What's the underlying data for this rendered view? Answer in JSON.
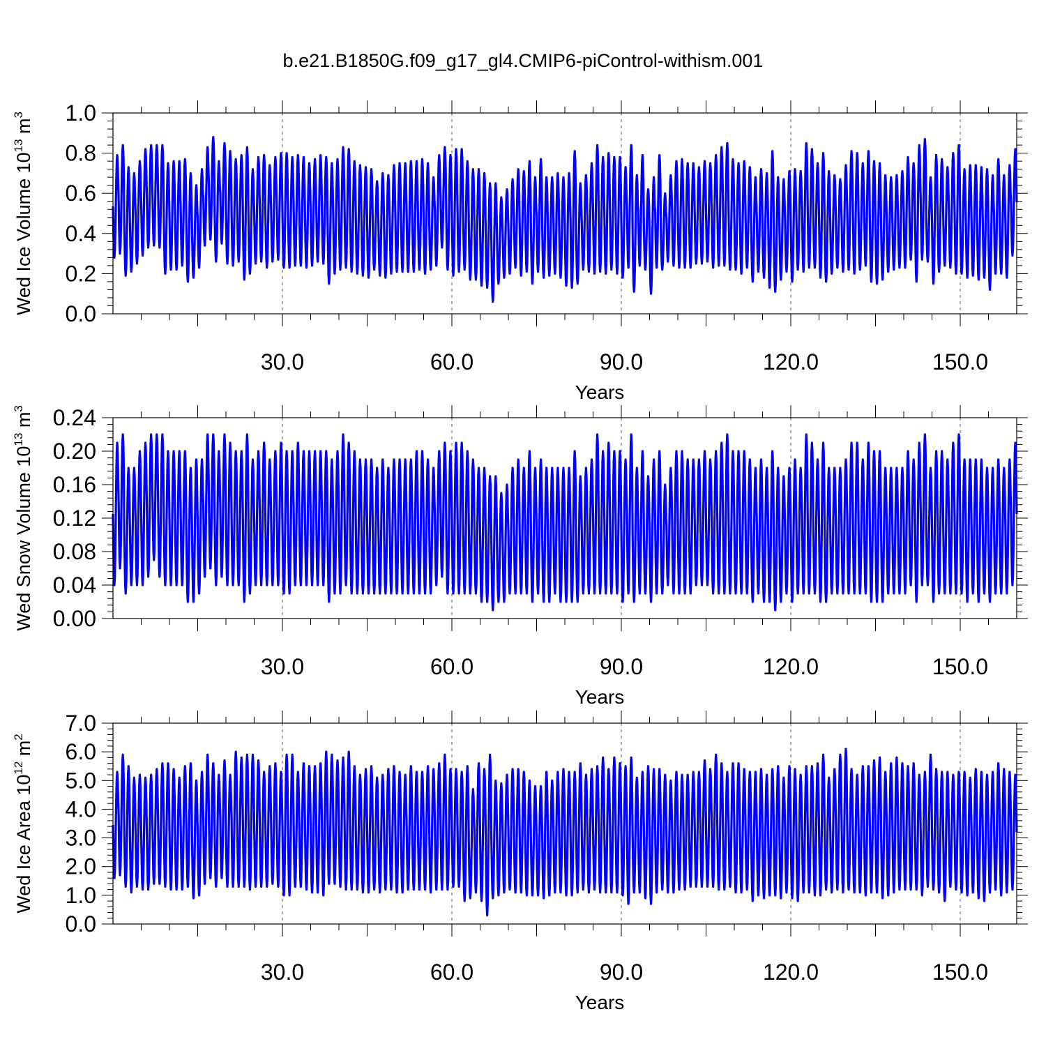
{
  "figure_title": "b.e21.B1850G.f09_g17_gl4.CMIP6-piControl-withism.001",
  "line_color": "#0000ff",
  "chart_data": [
    {
      "type": "line",
      "title": "",
      "xlabel": "Years",
      "ylabel": {
        "main": "Wed Ice Volume 10",
        "exponent": "13",
        "unit": " m",
        "unit_exponent": "3"
      },
      "xlim": [
        0,
        160
      ],
      "ylim": [
        0.0,
        1.0
      ],
      "xticks": [
        30,
        60,
        90,
        120,
        150
      ],
      "xtick_labels": [
        "30.0",
        "60.0",
        "90.0",
        "120.0",
        "150.0"
      ],
      "yticks": [
        0.0,
        0.2,
        0.4,
        0.6,
        0.8,
        1.0
      ],
      "ytick_labels": [
        "0.0",
        "0.2",
        "0.4",
        "0.6",
        "0.8",
        "1.0"
      ],
      "grid": "vertical dashed at labeled x ticks",
      "samples_per_year": 12,
      "annual_max": [
        0.79,
        0.84,
        0.73,
        0.7,
        0.76,
        0.82,
        0.84,
        0.84,
        0.84,
        0.75,
        0.76,
        0.76,
        0.77,
        0.7,
        0.64,
        0.72,
        0.83,
        0.88,
        0.76,
        0.85,
        0.81,
        0.77,
        0.79,
        0.83,
        0.72,
        0.78,
        0.79,
        0.74,
        0.78,
        0.8,
        0.8,
        0.78,
        0.79,
        0.78,
        0.75,
        0.77,
        0.79,
        0.78,
        0.75,
        0.77,
        0.83,
        0.82,
        0.76,
        0.74,
        0.73,
        0.72,
        0.66,
        0.7,
        0.69,
        0.74,
        0.75,
        0.75,
        0.76,
        0.76,
        0.77,
        0.75,
        0.68,
        0.79,
        0.83,
        0.79,
        0.82,
        0.82,
        0.76,
        0.72,
        0.72,
        0.7,
        0.65,
        0.65,
        0.58,
        0.62,
        0.67,
        0.72,
        0.71,
        0.76,
        0.68,
        0.77,
        0.68,
        0.68,
        0.7,
        0.68,
        0.7,
        0.81,
        0.65,
        0.69,
        0.75,
        0.84,
        0.78,
        0.8,
        0.78,
        0.78,
        0.73,
        0.84,
        0.69,
        0.79,
        0.62,
        0.68,
        0.79,
        0.6,
        0.69,
        0.76,
        0.77,
        0.75,
        0.75,
        0.73,
        0.76,
        0.75,
        0.79,
        0.83,
        0.85,
        0.77,
        0.75,
        0.76,
        0.73,
        0.68,
        0.72,
        0.7,
        0.81,
        0.68,
        0.67,
        0.71,
        0.72,
        0.71,
        0.85,
        0.82,
        0.75,
        0.8,
        0.71,
        0.69,
        0.67,
        0.74,
        0.81,
        0.8,
        0.75,
        0.81,
        0.76,
        0.75,
        0.69,
        0.68,
        0.69,
        0.71,
        0.78,
        0.75,
        0.84,
        0.87,
        0.68,
        0.79,
        0.77,
        0.73,
        0.8,
        0.84,
        0.72,
        0.74,
        0.74,
        0.73,
        0.72,
        0.69,
        0.77,
        0.69,
        0.74,
        0.82
      ],
      "annual_min": [
        0.28,
        0.3,
        0.19,
        0.21,
        0.25,
        0.29,
        0.33,
        0.34,
        0.33,
        0.2,
        0.22,
        0.22,
        0.24,
        0.16,
        0.18,
        0.23,
        0.34,
        0.37,
        0.26,
        0.35,
        0.25,
        0.24,
        0.26,
        0.17,
        0.2,
        0.25,
        0.26,
        0.23,
        0.26,
        0.27,
        0.23,
        0.23,
        0.24,
        0.24,
        0.23,
        0.24,
        0.26,
        0.25,
        0.15,
        0.2,
        0.22,
        0.23,
        0.21,
        0.2,
        0.19,
        0.18,
        0.22,
        0.19,
        0.18,
        0.2,
        0.21,
        0.21,
        0.21,
        0.21,
        0.22,
        0.2,
        0.22,
        0.24,
        0.33,
        0.22,
        0.19,
        0.21,
        0.22,
        0.17,
        0.17,
        0.14,
        0.13,
        0.06,
        0.15,
        0.18,
        0.2,
        0.23,
        0.19,
        0.21,
        0.15,
        0.21,
        0.18,
        0.19,
        0.2,
        0.18,
        0.14,
        0.13,
        0.15,
        0.22,
        0.21,
        0.2,
        0.21,
        0.2,
        0.22,
        0.2,
        0.18,
        0.23,
        0.11,
        0.24,
        0.22,
        0.1,
        0.23,
        0.22,
        0.26,
        0.24,
        0.23,
        0.23,
        0.23,
        0.25,
        0.25,
        0.26,
        0.23,
        0.24,
        0.24,
        0.22,
        0.22,
        0.2,
        0.23,
        0.16,
        0.21,
        0.18,
        0.13,
        0.11,
        0.17,
        0.21,
        0.16,
        0.22,
        0.21,
        0.23,
        0.23,
        0.18,
        0.16,
        0.2,
        0.23,
        0.21,
        0.22,
        0.2,
        0.22,
        0.24,
        0.16,
        0.15,
        0.17,
        0.21,
        0.22,
        0.23,
        0.23,
        0.27,
        0.16,
        0.27,
        0.26,
        0.15,
        0.21,
        0.24,
        0.23,
        0.2,
        0.2,
        0.18,
        0.19,
        0.17,
        0.18,
        0.12,
        0.2,
        0.2,
        0.18,
        0.29
      ]
    },
    {
      "type": "line",
      "title": "",
      "xlabel": "Years",
      "ylabel": {
        "main": "Wed Snow Volume 10",
        "exponent": "13",
        "unit": " m",
        "unit_exponent": "3"
      },
      "xlim": [
        0,
        160
      ],
      "ylim": [
        0.0,
        0.24
      ],
      "xticks": [
        30,
        60,
        90,
        120,
        150
      ],
      "xtick_labels": [
        "30.0",
        "60.0",
        "90.0",
        "120.0",
        "150.0"
      ],
      "yticks": [
        0.0,
        0.04,
        0.08,
        0.12,
        0.16,
        0.2,
        0.24
      ],
      "ytick_labels": [
        "0.00",
        "0.04",
        "0.08",
        "0.12",
        "0.16",
        "0.20",
        "0.24"
      ],
      "grid": "vertical dashed at labeled x ticks",
      "samples_per_year": 12,
      "annual_max": [
        0.21,
        0.22,
        0.18,
        0.18,
        0.2,
        0.21,
        0.22,
        0.22,
        0.22,
        0.2,
        0.2,
        0.2,
        0.2,
        0.18,
        0.19,
        0.19,
        0.22,
        0.22,
        0.2,
        0.22,
        0.21,
        0.2,
        0.2,
        0.22,
        0.19,
        0.2,
        0.21,
        0.19,
        0.2,
        0.21,
        0.2,
        0.2,
        0.21,
        0.2,
        0.2,
        0.2,
        0.2,
        0.2,
        0.19,
        0.2,
        0.22,
        0.21,
        0.2,
        0.19,
        0.19,
        0.19,
        0.18,
        0.19,
        0.18,
        0.19,
        0.19,
        0.19,
        0.19,
        0.2,
        0.2,
        0.19,
        0.18,
        0.2,
        0.21,
        0.2,
        0.21,
        0.21,
        0.2,
        0.19,
        0.18,
        0.18,
        0.17,
        0.17,
        0.15,
        0.16,
        0.18,
        0.19,
        0.18,
        0.2,
        0.18,
        0.19,
        0.18,
        0.18,
        0.18,
        0.18,
        0.18,
        0.2,
        0.17,
        0.18,
        0.19,
        0.22,
        0.2,
        0.21,
        0.2,
        0.2,
        0.19,
        0.22,
        0.18,
        0.2,
        0.17,
        0.19,
        0.2,
        0.16,
        0.18,
        0.2,
        0.2,
        0.19,
        0.19,
        0.19,
        0.2,
        0.19,
        0.2,
        0.21,
        0.22,
        0.2,
        0.2,
        0.2,
        0.19,
        0.18,
        0.19,
        0.18,
        0.2,
        0.18,
        0.17,
        0.18,
        0.19,
        0.18,
        0.22,
        0.21,
        0.19,
        0.21,
        0.18,
        0.18,
        0.18,
        0.19,
        0.21,
        0.21,
        0.19,
        0.21,
        0.2,
        0.2,
        0.18,
        0.18,
        0.18,
        0.18,
        0.2,
        0.19,
        0.21,
        0.22,
        0.18,
        0.2,
        0.2,
        0.19,
        0.21,
        0.22,
        0.19,
        0.19,
        0.19,
        0.19,
        0.18,
        0.18,
        0.19,
        0.18,
        0.19,
        0.21
      ],
      "annual_min": [
        0.04,
        0.06,
        0.03,
        0.04,
        0.04,
        0.04,
        0.05,
        0.07,
        0.05,
        0.04,
        0.04,
        0.04,
        0.04,
        0.02,
        0.02,
        0.03,
        0.05,
        0.06,
        0.04,
        0.05,
        0.04,
        0.04,
        0.04,
        0.02,
        0.03,
        0.04,
        0.04,
        0.04,
        0.04,
        0.04,
        0.03,
        0.03,
        0.04,
        0.04,
        0.04,
        0.04,
        0.04,
        0.04,
        0.02,
        0.03,
        0.03,
        0.04,
        0.03,
        0.03,
        0.03,
        0.03,
        0.03,
        0.03,
        0.03,
        0.03,
        0.03,
        0.03,
        0.03,
        0.03,
        0.03,
        0.03,
        0.03,
        0.04,
        0.05,
        0.03,
        0.03,
        0.03,
        0.03,
        0.03,
        0.03,
        0.02,
        0.02,
        0.01,
        0.02,
        0.02,
        0.03,
        0.03,
        0.03,
        0.03,
        0.02,
        0.03,
        0.02,
        0.02,
        0.03,
        0.02,
        0.02,
        0.02,
        0.02,
        0.03,
        0.03,
        0.03,
        0.03,
        0.03,
        0.03,
        0.03,
        0.02,
        0.03,
        0.02,
        0.03,
        0.03,
        0.02,
        0.03,
        0.03,
        0.04,
        0.03,
        0.03,
        0.03,
        0.03,
        0.04,
        0.04,
        0.04,
        0.03,
        0.03,
        0.03,
        0.03,
        0.03,
        0.03,
        0.03,
        0.02,
        0.03,
        0.02,
        0.02,
        0.01,
        0.02,
        0.03,
        0.02,
        0.03,
        0.03,
        0.03,
        0.03,
        0.02,
        0.02,
        0.03,
        0.03,
        0.03,
        0.03,
        0.03,
        0.03,
        0.03,
        0.02,
        0.02,
        0.02,
        0.03,
        0.03,
        0.03,
        0.03,
        0.04,
        0.02,
        0.04,
        0.04,
        0.02,
        0.03,
        0.03,
        0.03,
        0.03,
        0.03,
        0.02,
        0.03,
        0.02,
        0.03,
        0.02,
        0.03,
        0.03,
        0.03,
        0.04
      ]
    },
    {
      "type": "line",
      "title": "",
      "xlabel": "Years",
      "ylabel": {
        "main": "Wed Ice Area 10",
        "exponent": "12",
        "unit": " m",
        "unit_exponent": "2"
      },
      "xlim": [
        0,
        160
      ],
      "ylim": [
        0.0,
        7.0
      ],
      "xticks": [
        30,
        60,
        90,
        120,
        150
      ],
      "xtick_labels": [
        "30.0",
        "60.0",
        "90.0",
        "120.0",
        "150.0"
      ],
      "yticks": [
        0.0,
        1.0,
        2.0,
        3.0,
        4.0,
        5.0,
        6.0,
        7.0
      ],
      "ytick_labels": [
        "0.0",
        "1.0",
        "2.0",
        "3.0",
        "4.0",
        "5.0",
        "6.0",
        "7.0"
      ],
      "grid": "vertical dashed at labeled x ticks",
      "samples_per_year": 12,
      "annual_max": [
        5.3,
        5.9,
        5.5,
        5.1,
        5.2,
        5.1,
        5.2,
        5.4,
        5.6,
        5.6,
        5.4,
        5.1,
        5.5,
        5.6,
        5.0,
        5.3,
        5.9,
        5.6,
        5.2,
        5.7,
        5.2,
        6.0,
        5.8,
        5.9,
        5.9,
        5.7,
        5.3,
        5.5,
        5.6,
        5.3,
        5.9,
        5.9,
        5.3,
        5.6,
        5.5,
        5.5,
        5.6,
        6.0,
        5.9,
        5.7,
        5.8,
        6.0,
        5.5,
        5.2,
        5.4,
        5.5,
        5.1,
        5.2,
        5.4,
        5.5,
        5.3,
        5.2,
        5.5,
        5.3,
        5.3,
        5.5,
        5.4,
        5.6,
        5.9,
        5.4,
        5.4,
        5.3,
        5.5,
        4.7,
        5.6,
        5.4,
        5.9,
        5.0,
        4.9,
        5.2,
        5.4,
        5.4,
        5.3,
        5.0,
        4.8,
        4.8,
        5.3,
        5.0,
        5.3,
        5.4,
        5.3,
        5.3,
        5.6,
        5.2,
        5.4,
        5.5,
        5.8,
        5.4,
        5.8,
        5.6,
        5.5,
        5.8,
        5.1,
        5.3,
        5.5,
        5.4,
        5.4,
        5.2,
        5.0,
        5.3,
        5.2,
        5.2,
        5.3,
        5.3,
        5.7,
        5.4,
        5.9,
        5.6,
        5.3,
        5.6,
        5.6,
        5.4,
        5.3,
        5.3,
        5.4,
        5.2,
        5.4,
        5.5,
        5.1,
        5.5,
        5.4,
        5.2,
        5.5,
        5.5,
        5.6,
        5.9,
        5.1,
        5.4,
        5.9,
        6.1,
        5.4,
        5.2,
        5.5,
        5.5,
        5.7,
        5.8,
        5.3,
        5.6,
        5.8,
        5.6,
        5.5,
        5.6,
        5.2,
        5.3,
        5.9,
        5.4,
        5.3,
        5.3,
        5.2,
        5.3,
        5.3,
        5.1,
        5.4,
        5.3,
        5.2,
        5.3,
        5.6,
        5.4,
        5.3,
        5.2
      ],
      "annual_min": [
        1.6,
        1.7,
        1.3,
        1.1,
        1.3,
        1.2,
        1.2,
        1.4,
        1.4,
        1.3,
        1.2,
        1.2,
        1.2,
        1.3,
        0.9,
        1.0,
        1.4,
        1.6,
        1.3,
        1.6,
        1.3,
        1.3,
        1.3,
        1.3,
        1.2,
        1.3,
        1.3,
        1.3,
        1.4,
        1.3,
        1.0,
        1.0,
        1.3,
        1.3,
        1.2,
        1.1,
        1.1,
        1.0,
        1.4,
        1.4,
        1.3,
        1.2,
        1.2,
        1.2,
        1.1,
        1.1,
        1.2,
        1.1,
        1.2,
        1.2,
        1.1,
        1.1,
        1.2,
        1.2,
        1.2,
        1.2,
        1.1,
        1.2,
        1.2,
        1.2,
        1.3,
        1.3,
        0.8,
        0.9,
        1.1,
        0.8,
        0.3,
        0.9,
        1.0,
        1.1,
        1.2,
        1.1,
        1.1,
        1.0,
        1.0,
        1.0,
        0.9,
        1.0,
        1.1,
        1.1,
        1.0,
        1.0,
        1.1,
        1.2,
        1.1,
        1.2,
        1.1,
        1.1,
        1.1,
        1.1,
        1.0,
        0.7,
        1.1,
        1.1,
        0.9,
        0.7,
        1.1,
        1.2,
        1.1,
        1.1,
        1.2,
        1.2,
        1.3,
        1.3,
        1.3,
        1.3,
        1.3,
        1.2,
        1.2,
        1.3,
        1.1,
        1.1,
        1.2,
        0.8,
        1.0,
        0.9,
        1.0,
        1.0,
        0.9,
        1.1,
        0.9,
        0.8,
        1.1,
        1.1,
        1.0,
        1.0,
        1.2,
        1.1,
        1.2,
        1.1,
        1.2,
        1.1,
        1.1,
        1.0,
        1.1,
        1.1,
        0.9,
        1.0,
        1.1,
        1.2,
        1.2,
        1.2,
        1.2,
        1.0,
        1.3,
        1.2,
        1.1,
        0.8,
        1.3,
        1.2,
        1.1,
        1.0,
        1.1,
        0.9,
        0.8,
        1.1,
        1.2,
        1.0,
        1.1,
        1.2,
        1.0,
        1.5
      ]
    }
  ]
}
